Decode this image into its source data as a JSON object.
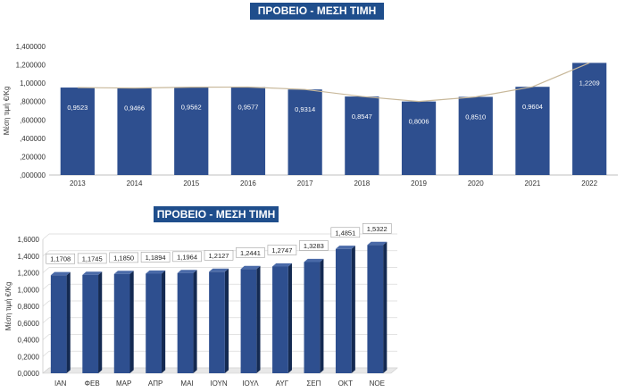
{
  "chart_data": [
    {
      "type": "bar",
      "title": "ΠΡΟΒΕΙΟ - ΜΕΣΗ ΤΙΜΗ",
      "ylabel": "Μέση τιμή €/Kg",
      "categories": [
        "2013",
        "2014",
        "2015",
        "2016",
        "2017",
        "2018",
        "2019",
        "2020",
        "2021",
        "2022"
      ],
      "values": [
        0.9523,
        0.9466,
        0.9562,
        0.9577,
        0.9314,
        0.8547,
        0.8006,
        0.851,
        0.9604,
        1.2209
      ],
      "value_labels": [
        "0,9523",
        "0,9466",
        "0,9562",
        "0,9577",
        "0,9314",
        "0,8547",
        "0,8006",
        "0,8510",
        "0,9604",
        "1,2209"
      ],
      "ylim": [
        0,
        1.4
      ],
      "yticks": [
        ",000000",
        ",200000",
        ",400000",
        ",600000",
        ",800000",
        "1,00000",
        "1,200000",
        "1,400000"
      ],
      "overlay_line": true,
      "grid": false,
      "colors": {
        "bar": "#2e4f8f",
        "line": "#c8b89a"
      }
    },
    {
      "type": "bar",
      "title": "ΠΡΟΒΕΙΟ - ΜΕΣΗ ΤΙΜΗ",
      "ylabel": "Μέση τιμή €/Kg",
      "categories": [
        "ΙΑΝ",
        "ΦΕΒ",
        "ΜΑΡ",
        "ΑΠΡ",
        "ΜΑΙ",
        "ΙΟΥΝ",
        "ΙΟΥΛ",
        "ΑΥΓ",
        "ΣΕΠ",
        "ΟΚΤ",
        "ΝΟΕ"
      ],
      "values": [
        1.1708,
        1.1745,
        1.185,
        1.1894,
        1.1964,
        1.2127,
        1.2441,
        1.2747,
        1.3283,
        1.4851,
        1.5322
      ],
      "value_labels": [
        "1,1708",
        "1,1745",
        "1,1850",
        "1,1894",
        "1,1964",
        "1,2127",
        "1,2441",
        "1,2747",
        "1,3283",
        "1,4851",
        "1,5322"
      ],
      "ylim": [
        0,
        1.6
      ],
      "yticks": [
        "0,0000",
        "0,2000",
        "0,4000",
        "0,6000",
        "0,8000",
        "1,0000",
        "1,2000",
        "1,4000",
        "1,6000"
      ],
      "grid": true,
      "style_3d": true,
      "colors": {
        "bar": "#2e4f8f",
        "bar_side": "#142a52",
        "grid": "#d9d9d9"
      }
    }
  ]
}
